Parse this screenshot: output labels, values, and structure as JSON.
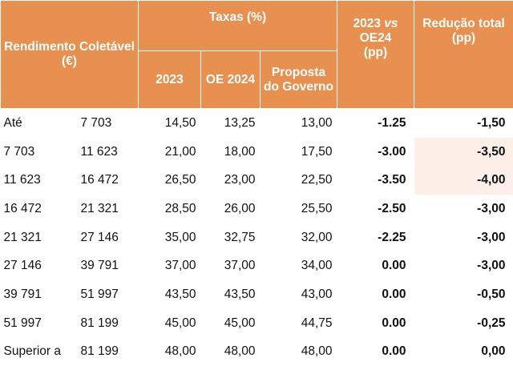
{
  "header": {
    "rendimento": "Rendimento Coletável (€)",
    "taxas": "Taxas (%)",
    "col_2023": "2023",
    "col_oe2024": "OE 2024",
    "col_proposta": "Proposta do Governo",
    "col_diff": "2023 vs OE24 (pp)",
    "col_diff_a": "2023 ",
    "col_diff_vs": "vs",
    "col_diff_b": "OE24",
    "col_diff_c": "(pp)",
    "col_reducao": "Redução total (pp)"
  },
  "rows": [
    {
      "lo": "Até",
      "hi": "7 703",
      "r2023": "14,50",
      "oe2024": "13,25",
      "proposta": "13,00",
      "diff": "-1.25",
      "reducao": "-1,50",
      "highlight": false
    },
    {
      "lo": "7 703",
      "hi": "11 623",
      "r2023": "21,00",
      "oe2024": "18,00",
      "proposta": "17,50",
      "diff": "-3.00",
      "reducao": "-3,50",
      "highlight": true
    },
    {
      "lo": "11 623",
      "hi": "16 472",
      "r2023": "26,50",
      "oe2024": "23,00",
      "proposta": "22,50",
      "diff": "-3.50",
      "reducao": "-4,00",
      "highlight": true
    },
    {
      "lo": "16 472",
      "hi": "21 321",
      "r2023": "28,50",
      "oe2024": "26,00",
      "proposta": "25,50",
      "diff": "-2.50",
      "reducao": "-3,00",
      "highlight": false
    },
    {
      "lo": "21 321",
      "hi": "27 146",
      "r2023": "35,00",
      "oe2024": "32,75",
      "proposta": "32,00",
      "diff": "-2.25",
      "reducao": "-3,00",
      "highlight": false
    },
    {
      "lo": "27 146",
      "hi": "39 791",
      "r2023": "37,00",
      "oe2024": "37,00",
      "proposta": "34,00",
      "diff": "0.00",
      "reducao": "-3,00",
      "highlight": false
    },
    {
      "lo": "39 791",
      "hi": "51 997",
      "r2023": "43,50",
      "oe2024": "43,50",
      "proposta": "43,00",
      "diff": "0.00",
      "reducao": "-0,50",
      "highlight": false
    },
    {
      "lo": "51 997",
      "hi": "81 199",
      "r2023": "45,00",
      "oe2024": "45,00",
      "proposta": "44,75",
      "diff": "0.00",
      "reducao": "-0,25",
      "highlight": false
    },
    {
      "lo": "Superior a",
      "hi": "81 199",
      "r2023": "48,00",
      "oe2024": "48,00",
      "proposta": "48,00",
      "diff": "0.00",
      "reducao": "0,00",
      "highlight": false
    }
  ],
  "colors": {
    "header_bg": "#e8904f",
    "highlight_bg": "#fbefe7"
  }
}
